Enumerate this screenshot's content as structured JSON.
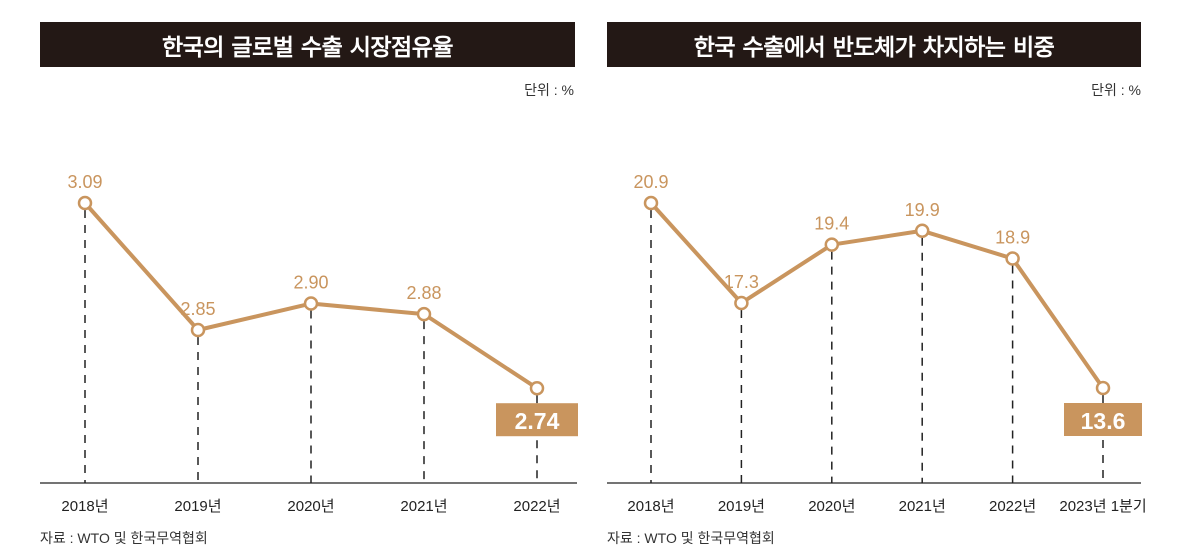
{
  "chart_data": [
    {
      "type": "line",
      "title": "한국의 글로벌 수출 시장점유율",
      "unit": "단위 : %",
      "source": "자료 : WTO 및 한국무역협회",
      "categories": [
        "2018년",
        "2019년",
        "2020년",
        "2021년",
        "2022년"
      ],
      "values": [
        3.09,
        2.85,
        2.9,
        2.88,
        2.74
      ],
      "value_labels": [
        "3.09",
        "2.85",
        "2.90",
        "2.88",
        "2.74"
      ],
      "highlight_last": true,
      "grid": false,
      "color": "#c9955e"
    },
    {
      "type": "line",
      "title": "한국 수출에서 반도체가 차지하는 비중",
      "unit": "단위 : %",
      "source": "자료 : WTO 및 한국무역협회",
      "categories": [
        "2018년",
        "2019년",
        "2020년",
        "2021년",
        "2022년",
        "2023년 1분기"
      ],
      "values": [
        20.9,
        17.3,
        19.4,
        19.9,
        18.9,
        13.6
      ],
      "value_labels": [
        "20.9",
        "17.3",
        "19.4",
        "19.9",
        "18.9",
        "13.6"
      ],
      "highlight_last": true,
      "grid": false,
      "color": "#c9955e"
    }
  ]
}
